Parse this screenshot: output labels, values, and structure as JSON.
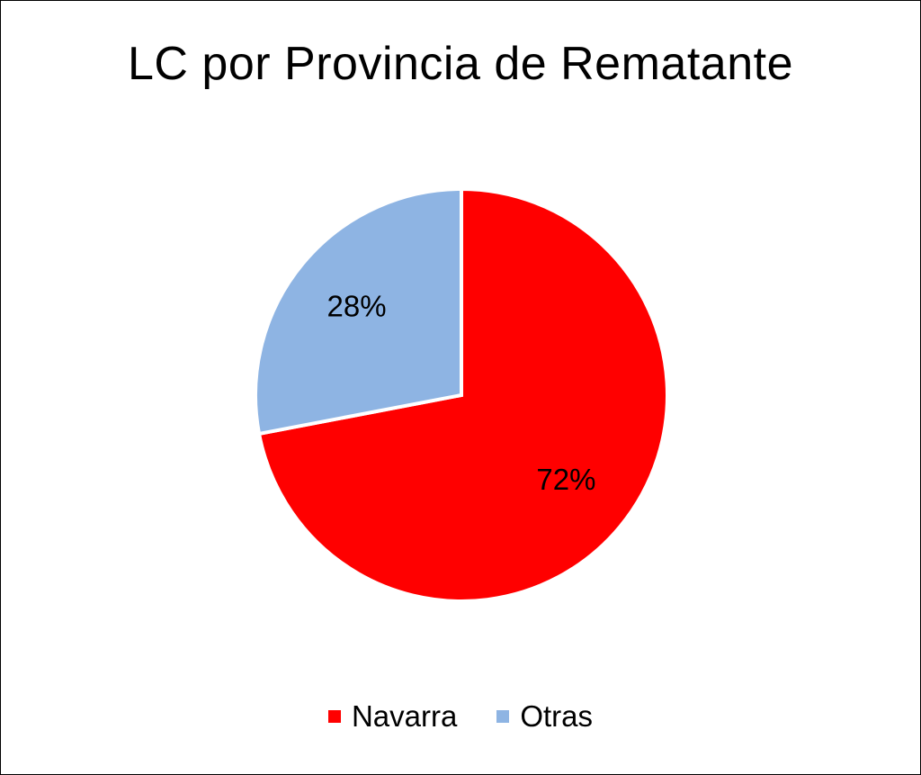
{
  "chart_data": {
    "type": "pie",
    "title": "LC por Provincia de Rematante",
    "slices": [
      {
        "name": "Navarra",
        "value": 72,
        "label": "72%",
        "color": "#ff0000"
      },
      {
        "name": "Otras",
        "value": 28,
        "label": "28%",
        "color": "#8eb4e3"
      }
    ],
    "legend_position": "bottom",
    "start": "12 o'clock, clockwise"
  }
}
